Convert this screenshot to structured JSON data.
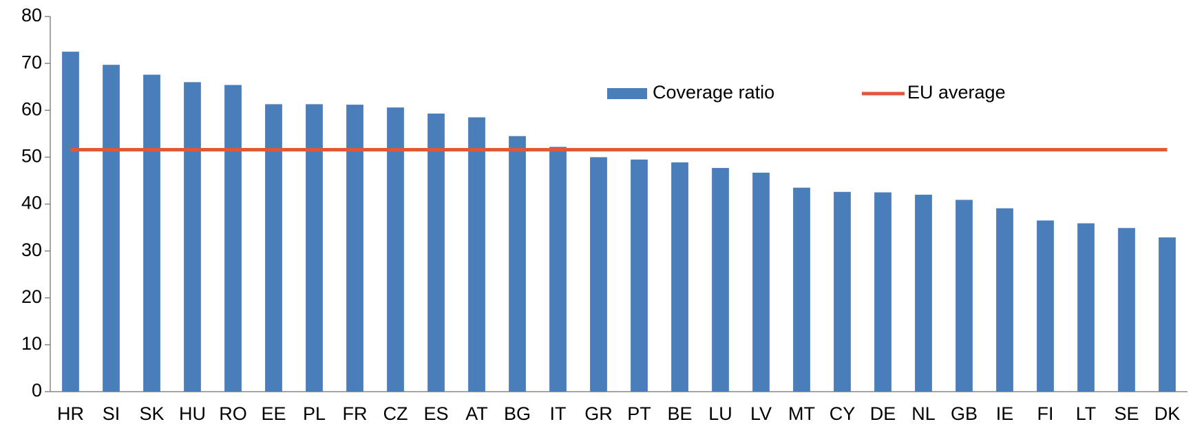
{
  "chart_data": {
    "type": "bar",
    "categories": [
      "HR",
      "SI",
      "SK",
      "HU",
      "RO",
      "EE",
      "PL",
      "FR",
      "CZ",
      "ES",
      "AT",
      "BG",
      "IT",
      "GR",
      "PT",
      "BE",
      "LU",
      "LV",
      "MT",
      "CY",
      "DE",
      "NL",
      "GB",
      "IE",
      "FI",
      "LT",
      "SE",
      "DK"
    ],
    "series": [
      {
        "name": "Coverage ratio",
        "type": "bar",
        "color": "#4a7ebb",
        "values": [
          72.5,
          69.7,
          67.6,
          66.0,
          65.4,
          61.3,
          61.3,
          61.2,
          60.6,
          59.3,
          58.5,
          54.5,
          52.2,
          50.0,
          49.5,
          48.9,
          47.7,
          46.7,
          43.5,
          42.6,
          42.5,
          42.0,
          40.9,
          39.1,
          36.5,
          35.9,
          34.9,
          32.9
        ]
      },
      {
        "name": "EU average",
        "type": "line",
        "color": "#e0583a",
        "values": [
          51.6,
          51.6,
          51.6,
          51.6,
          51.6,
          51.6,
          51.6,
          51.6,
          51.6,
          51.6,
          51.6,
          51.6,
          51.6,
          51.6,
          51.6,
          51.6,
          51.6,
          51.6,
          51.6,
          51.6,
          51.6,
          51.6,
          51.6,
          51.6,
          51.6,
          51.6,
          51.6,
          51.6
        ]
      }
    ],
    "ylim": [
      0,
      80
    ],
    "yticks": [
      0,
      10,
      20,
      30,
      40,
      50,
      60,
      70,
      80
    ],
    "grid": false,
    "legend": "top-right"
  }
}
